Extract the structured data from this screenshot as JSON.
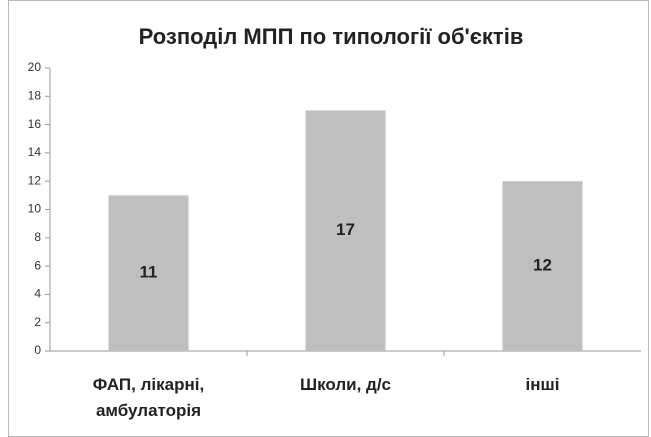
{
  "chart_data": {
    "type": "bar",
    "title": "Розподіл МПП по типології об'єктів",
    "categories": [
      "ФАП, лікарні, амбулаторія",
      "Школи, д/с",
      "інші"
    ],
    "values": [
      11,
      17,
      12
    ],
    "color": "#bfbfbf",
    "ylim": [
      0,
      20
    ],
    "yticks": [
      0,
      2,
      4,
      6,
      8,
      10,
      12,
      14,
      16,
      18,
      20
    ],
    "grid": false
  }
}
